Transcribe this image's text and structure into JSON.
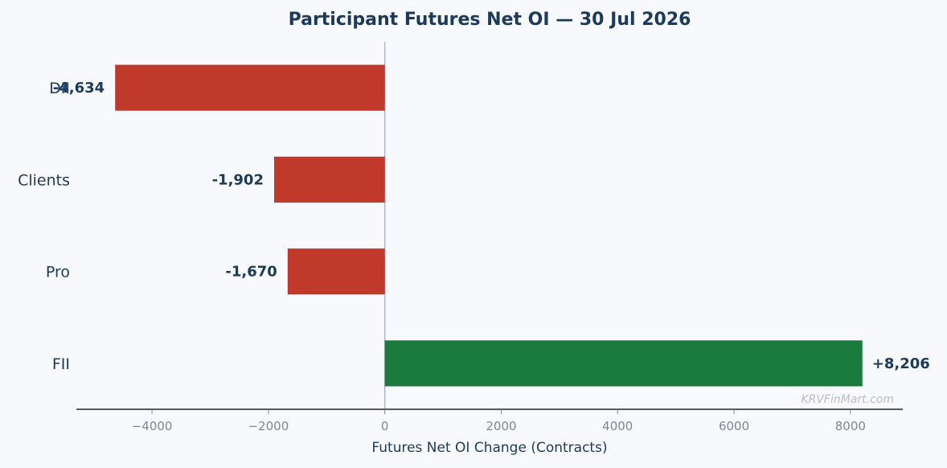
{
  "chart_data": {
    "type": "bar",
    "orientation": "horizontal",
    "title": "Participant Futures Net OI — 30 Jul 2026",
    "xlabel": "Futures Net OI Change (Contracts)",
    "ylabel": "",
    "categories": [
      "DII",
      "Clients",
      "Pro",
      "FII"
    ],
    "values": [
      -4634,
      -1902,
      -1670,
      8206
    ],
    "value_labels": [
      "-4,634",
      "-1,902",
      "-1,670",
      "+8,206"
    ],
    "xlim": [
      -5300,
      8900
    ],
    "xticks": [
      -4000,
      -2000,
      0,
      2000,
      4000,
      6000,
      8000
    ],
    "xtick_labels": [
      "−4000",
      "−2000",
      "0",
      "2000",
      "4000",
      "6000",
      "8000"
    ],
    "colors": {
      "negative": "#c0392b",
      "positive": "#1b7a3e",
      "text": "#1b3a5c",
      "zero_line": "#aab8c8",
      "axis": "#222222",
      "background": "#f7f9fc"
    },
    "grid": false,
    "legend": "none",
    "watermark": "KRVFinMart.com"
  }
}
